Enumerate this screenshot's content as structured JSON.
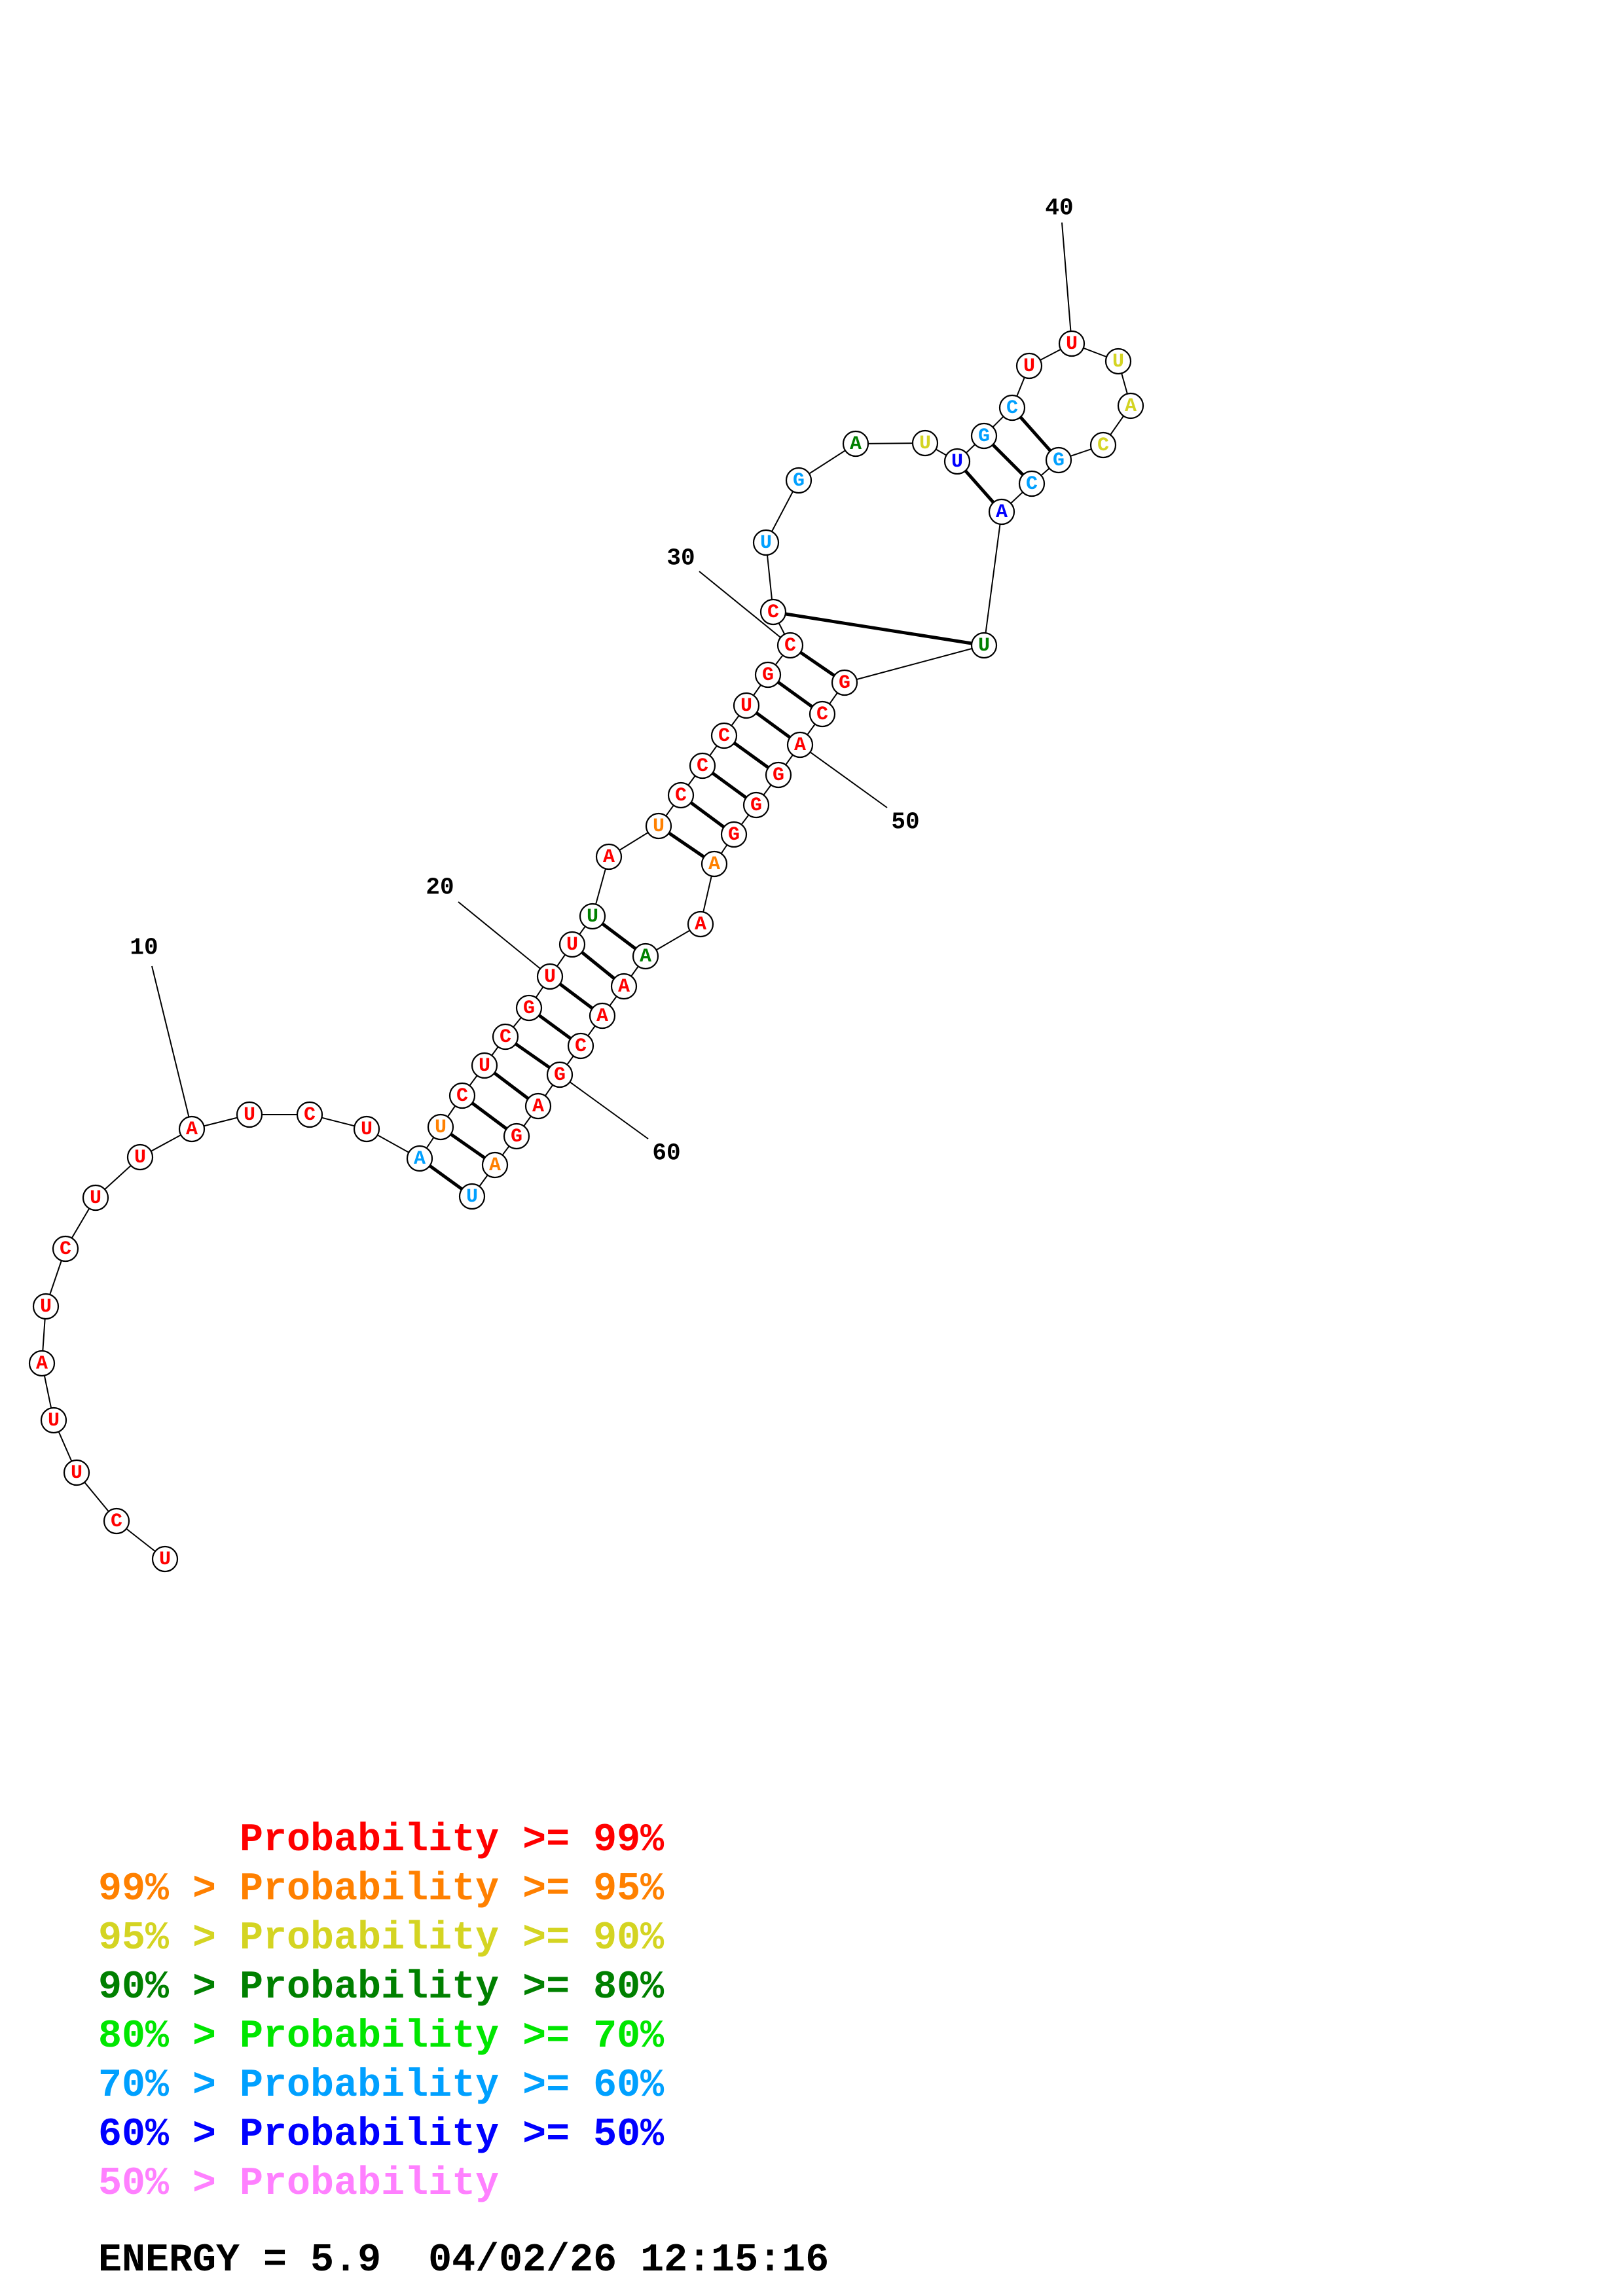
{
  "colors": {
    "red": "#ff0000",
    "orange": "#ff8000",
    "yellow": "#d4d422",
    "dark_green": "#008000",
    "green": "#00e600",
    "sky_blue": "#00a0ff",
    "blue": "#0000ff",
    "pink": "#ff80ff"
  },
  "structure": {
    "bases": [
      {
        "letter": "U",
        "color": "red"
      },
      {
        "letter": "C",
        "color": "red"
      },
      {
        "letter": "U",
        "color": "red"
      },
      {
        "letter": "U",
        "color": "red"
      },
      {
        "letter": "A",
        "color": "red"
      },
      {
        "letter": "U",
        "color": "red"
      },
      {
        "letter": "C",
        "color": "red"
      },
      {
        "letter": "U",
        "color": "red"
      },
      {
        "letter": "U",
        "color": "red"
      },
      {
        "letter": "A",
        "color": "red"
      },
      {
        "letter": "U",
        "color": "red"
      },
      {
        "letter": "C",
        "color": "red"
      },
      {
        "letter": "U",
        "color": "red"
      },
      {
        "letter": "A",
        "color": "sky_blue"
      },
      {
        "letter": "U",
        "color": "orange"
      },
      {
        "letter": "C",
        "color": "red"
      },
      {
        "letter": "U",
        "color": "red"
      },
      {
        "letter": "C",
        "color": "red"
      },
      {
        "letter": "G",
        "color": "red"
      },
      {
        "letter": "U",
        "color": "red"
      },
      {
        "letter": "U",
        "color": "red"
      },
      {
        "letter": "U",
        "color": "dark_green"
      },
      {
        "letter": "A",
        "color": "red"
      },
      {
        "letter": "U",
        "color": "orange"
      },
      {
        "letter": "C",
        "color": "red"
      },
      {
        "letter": "C",
        "color": "red"
      },
      {
        "letter": "C",
        "color": "red"
      },
      {
        "letter": "U",
        "color": "red"
      },
      {
        "letter": "G",
        "color": "red"
      },
      {
        "letter": "C",
        "color": "red"
      },
      {
        "letter": "C",
        "color": "red"
      },
      {
        "letter": "U",
        "color": "sky_blue"
      },
      {
        "letter": "G",
        "color": "sky_blue"
      },
      {
        "letter": "A",
        "color": "dark_green"
      },
      {
        "letter": "U",
        "color": "yellow"
      },
      {
        "letter": "U",
        "color": "blue"
      },
      {
        "letter": "G",
        "color": "sky_blue"
      },
      {
        "letter": "C",
        "color": "sky_blue"
      },
      {
        "letter": "U",
        "color": "red"
      },
      {
        "letter": "U",
        "color": "red"
      },
      {
        "letter": "U",
        "color": "yellow"
      },
      {
        "letter": "A",
        "color": "yellow"
      },
      {
        "letter": "C",
        "color": "yellow"
      },
      {
        "letter": "G",
        "color": "sky_blue"
      },
      {
        "letter": "C",
        "color": "sky_blue"
      },
      {
        "letter": "A",
        "color": "blue"
      },
      {
        "letter": "U",
        "color": "dark_green"
      },
      {
        "letter": "G",
        "color": "red"
      },
      {
        "letter": "C",
        "color": "red"
      },
      {
        "letter": "A",
        "color": "red"
      },
      {
        "letter": "G",
        "color": "red"
      },
      {
        "letter": "G",
        "color": "red"
      },
      {
        "letter": "G",
        "color": "red"
      },
      {
        "letter": "A",
        "color": "orange"
      },
      {
        "letter": "A",
        "color": "red"
      },
      {
        "letter": "A",
        "color": "dark_green"
      },
      {
        "letter": "A",
        "color": "red"
      },
      {
        "letter": "A",
        "color": "red"
      },
      {
        "letter": "C",
        "color": "red"
      },
      {
        "letter": "G",
        "color": "red"
      },
      {
        "letter": "A",
        "color": "red"
      },
      {
        "letter": "G",
        "color": "red"
      },
      {
        "letter": "A",
        "color": "orange"
      },
      {
        "letter": "U",
        "color": "sky_blue"
      }
    ],
    "pairs": [
      [
        14,
        64
      ],
      [
        15,
        63
      ],
      [
        16,
        62
      ],
      [
        17,
        61
      ],
      [
        18,
        60
      ],
      [
        19,
        59
      ],
      [
        20,
        58
      ],
      [
        21,
        57
      ],
      [
        22,
        56
      ],
      [
        24,
        54
      ],
      [
        25,
        53
      ],
      [
        26,
        52
      ],
      [
        27,
        51
      ],
      [
        28,
        50
      ],
      [
        29,
        49
      ],
      [
        30,
        48
      ],
      [
        31,
        47
      ],
      [
        36,
        46
      ],
      [
        37,
        45
      ],
      [
        38,
        44
      ]
    ],
    "position_labels": [
      "10",
      "20",
      "30",
      "40",
      "50",
      "60"
    ]
  },
  "legend": [
    {
      "prefix": "",
      "label": "Probability",
      "suffix": " >= 99%",
      "color": "red"
    },
    {
      "prefix": "99% > ",
      "label": "Probability",
      "suffix": " >= 95%",
      "color": "orange"
    },
    {
      "prefix": "95% > ",
      "label": "Probability",
      "suffix": " >= 90%",
      "color": "yellow"
    },
    {
      "prefix": "90% > ",
      "label": "Probability",
      "suffix": " >= 80%",
      "color": "dark_green"
    },
    {
      "prefix": "80% > ",
      "label": "Probability",
      "suffix": " >= 70%",
      "color": "green"
    },
    {
      "prefix": "70% > ",
      "label": "Probability",
      "suffix": " >= 60%",
      "color": "sky_blue"
    },
    {
      "prefix": "60% > ",
      "label": "Probability",
      "suffix": " >= 50%",
      "color": "blue"
    },
    {
      "prefix": "50% > ",
      "label": "Probability",
      "suffix": "",
      "color": "pink"
    }
  ],
  "energy": {
    "label": "ENERGY = 5.9",
    "timestamp": "04/02/26 12:15:16"
  }
}
